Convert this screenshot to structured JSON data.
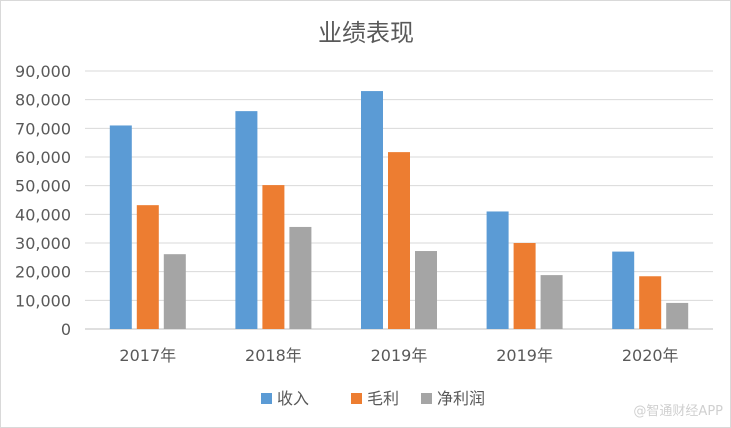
{
  "chart_data": {
    "type": "bar",
    "title": "业绩表现",
    "categories": [
      "2017年",
      "2018年",
      "2019年",
      "2019年",
      "2020年"
    ],
    "series": [
      {
        "name": "收入",
        "color": "#5b9bd5",
        "values": [
          71000,
          76000,
          83000,
          41000,
          27000
        ]
      },
      {
        "name": "毛利",
        "color": "#ed7d31",
        "values": [
          43200,
          50200,
          61700,
          30000,
          18400
        ]
      },
      {
        "name": "净利润",
        "color": "#a5a5a5",
        "values": [
          26100,
          35600,
          27200,
          18800,
          9100
        ]
      }
    ],
    "ylim": [
      0,
      90000
    ],
    "yticks": [
      "0",
      "10,000",
      "20,000",
      "30,000",
      "40,000",
      "50,000",
      "60,000",
      "70,000",
      "80,000",
      "90,000"
    ],
    "grid": true,
    "legend_position": "bottom"
  },
  "watermark": "@智通财经APP"
}
